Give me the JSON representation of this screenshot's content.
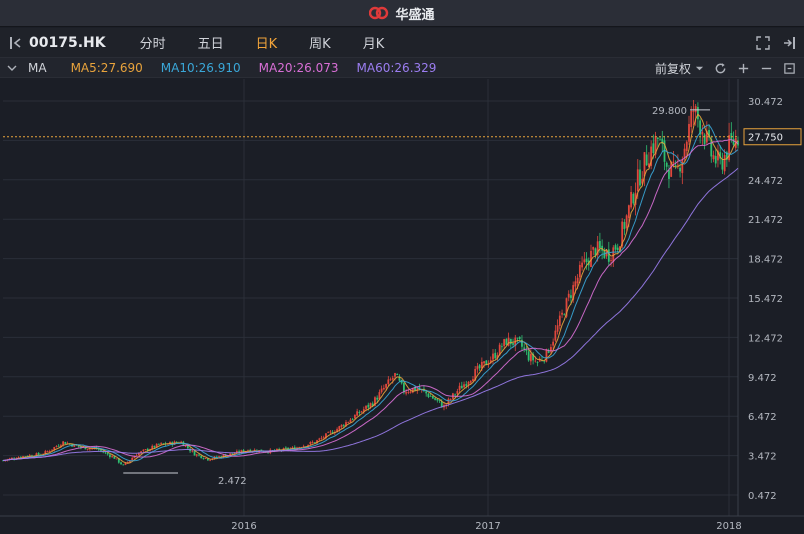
{
  "app": {
    "title": "华盛通"
  },
  "toolbar": {
    "symbol": "00175.HK",
    "tabs": [
      {
        "label": "分时",
        "active": false
      },
      {
        "label": "五日",
        "active": false
      },
      {
        "label": "日K",
        "active": true
      },
      {
        "label": "周K",
        "active": false
      },
      {
        "label": "月K",
        "active": false
      }
    ],
    "icons": [
      "collapse-panel-icon",
      "fullscreen-icon",
      "exit-icon"
    ]
  },
  "ma_bar": {
    "label": "MA",
    "items": [
      {
        "text": "MA5:27.690",
        "color": "#e8a33c"
      },
      {
        "text": "MA10:26.910",
        "color": "#3aa7d8"
      },
      {
        "text": "MA20:26.073",
        "color": "#d96fd6"
      },
      {
        "text": "MA60:26.329",
        "color": "#9b7df0"
      }
    ],
    "adjust_label": "前复权"
  },
  "chart_data": {
    "type": "candlestick",
    "x_ticks": [
      "2016",
      "2017",
      "2018"
    ],
    "y_ticks": [
      "30.472",
      "27.472",
      "24.472",
      "21.472",
      "18.472",
      "15.472",
      "12.472",
      "9.472",
      "6.472",
      "3.472",
      "0.472"
    ],
    "ylim": [
      0.472,
      30.472
    ],
    "current_price": "27.750",
    "max_label": "29.800",
    "min_label": "2.472",
    "price_path": [
      [
        0,
        3.1
      ],
      [
        8,
        3.4
      ],
      [
        18,
        3.6
      ],
      [
        27,
        4.5
      ],
      [
        35,
        4.1
      ],
      [
        42,
        4.0
      ],
      [
        50,
        3.3
      ],
      [
        54,
        2.7
      ],
      [
        60,
        3.6
      ],
      [
        70,
        4.3
      ],
      [
        80,
        4.5
      ],
      [
        86,
        3.6
      ],
      [
        92,
        3.2
      ],
      [
        100,
        3.5
      ],
      [
        110,
        3.9
      ],
      [
        120,
        3.8
      ],
      [
        130,
        4.0
      ],
      [
        140,
        4.5
      ],
      [
        150,
        5.5
      ],
      [
        158,
        6.5
      ],
      [
        166,
        7.5
      ],
      [
        172,
        8.8
      ],
      [
        176,
        9.6
      ],
      [
        180,
        8.4
      ],
      [
        186,
        8.6
      ],
      [
        192,
        8.0
      ],
      [
        198,
        7.2
      ],
      [
        204,
        8.4
      ],
      [
        212,
        9.8
      ],
      [
        220,
        11.0
      ],
      [
        226,
        12.2
      ],
      [
        232,
        12.0
      ],
      [
        236,
        11.0
      ],
      [
        240,
        10.6
      ],
      [
        244,
        11.2
      ],
      [
        248,
        12.8
      ],
      [
        254,
        15.5
      ],
      [
        260,
        17.8
      ],
      [
        266,
        19.2
      ],
      [
        272,
        18.8
      ],
      [
        276,
        19.6
      ],
      [
        280,
        21.6
      ],
      [
        284,
        24.0
      ],
      [
        290,
        26.6
      ],
      [
        294,
        27.6
      ],
      [
        298,
        25.6
      ],
      [
        302,
        24.8
      ],
      [
        306,
        27.0
      ],
      [
        310,
        29.8
      ],
      [
        314,
        28.4
      ],
      [
        318,
        26.4
      ],
      [
        322,
        25.6
      ],
      [
        326,
        27.0
      ],
      [
        330,
        27.75
      ]
    ]
  }
}
